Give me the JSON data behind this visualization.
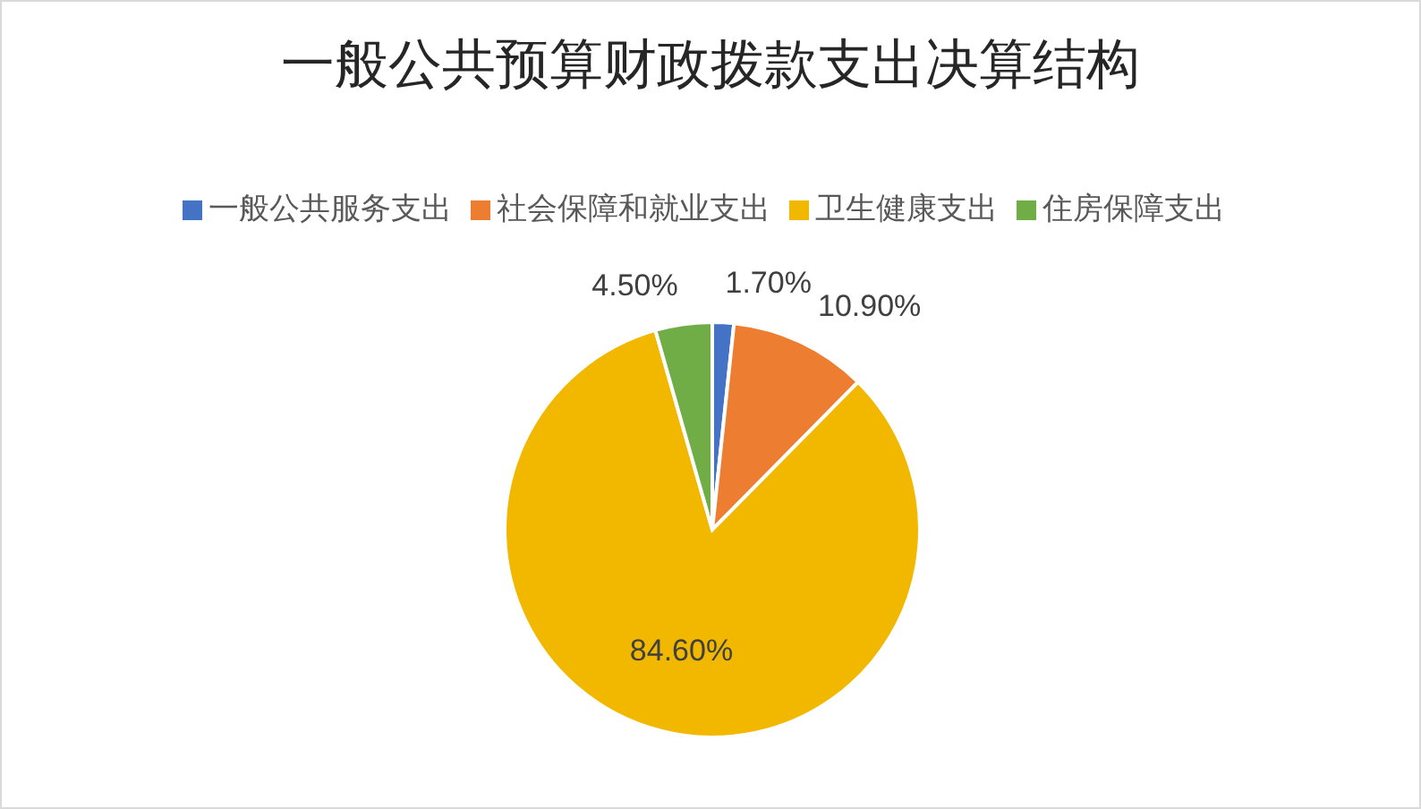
{
  "chart_data": {
    "type": "pie",
    "title": "一般公共预算财政拨款支出决算结构",
    "categories": [
      "一般公共服务支出",
      "社会保障和就业支出",
      "卫生健康支出",
      "住房保障支出"
    ],
    "values": [
      1.7,
      10.9,
      84.6,
      4.5
    ],
    "value_labels": [
      "1.70%",
      "10.90%",
      "84.60%",
      "4.50%"
    ],
    "colors": [
      "#4472c4",
      "#ed7d31",
      "#f2b800",
      "#70ad47"
    ],
    "legend": "top"
  }
}
